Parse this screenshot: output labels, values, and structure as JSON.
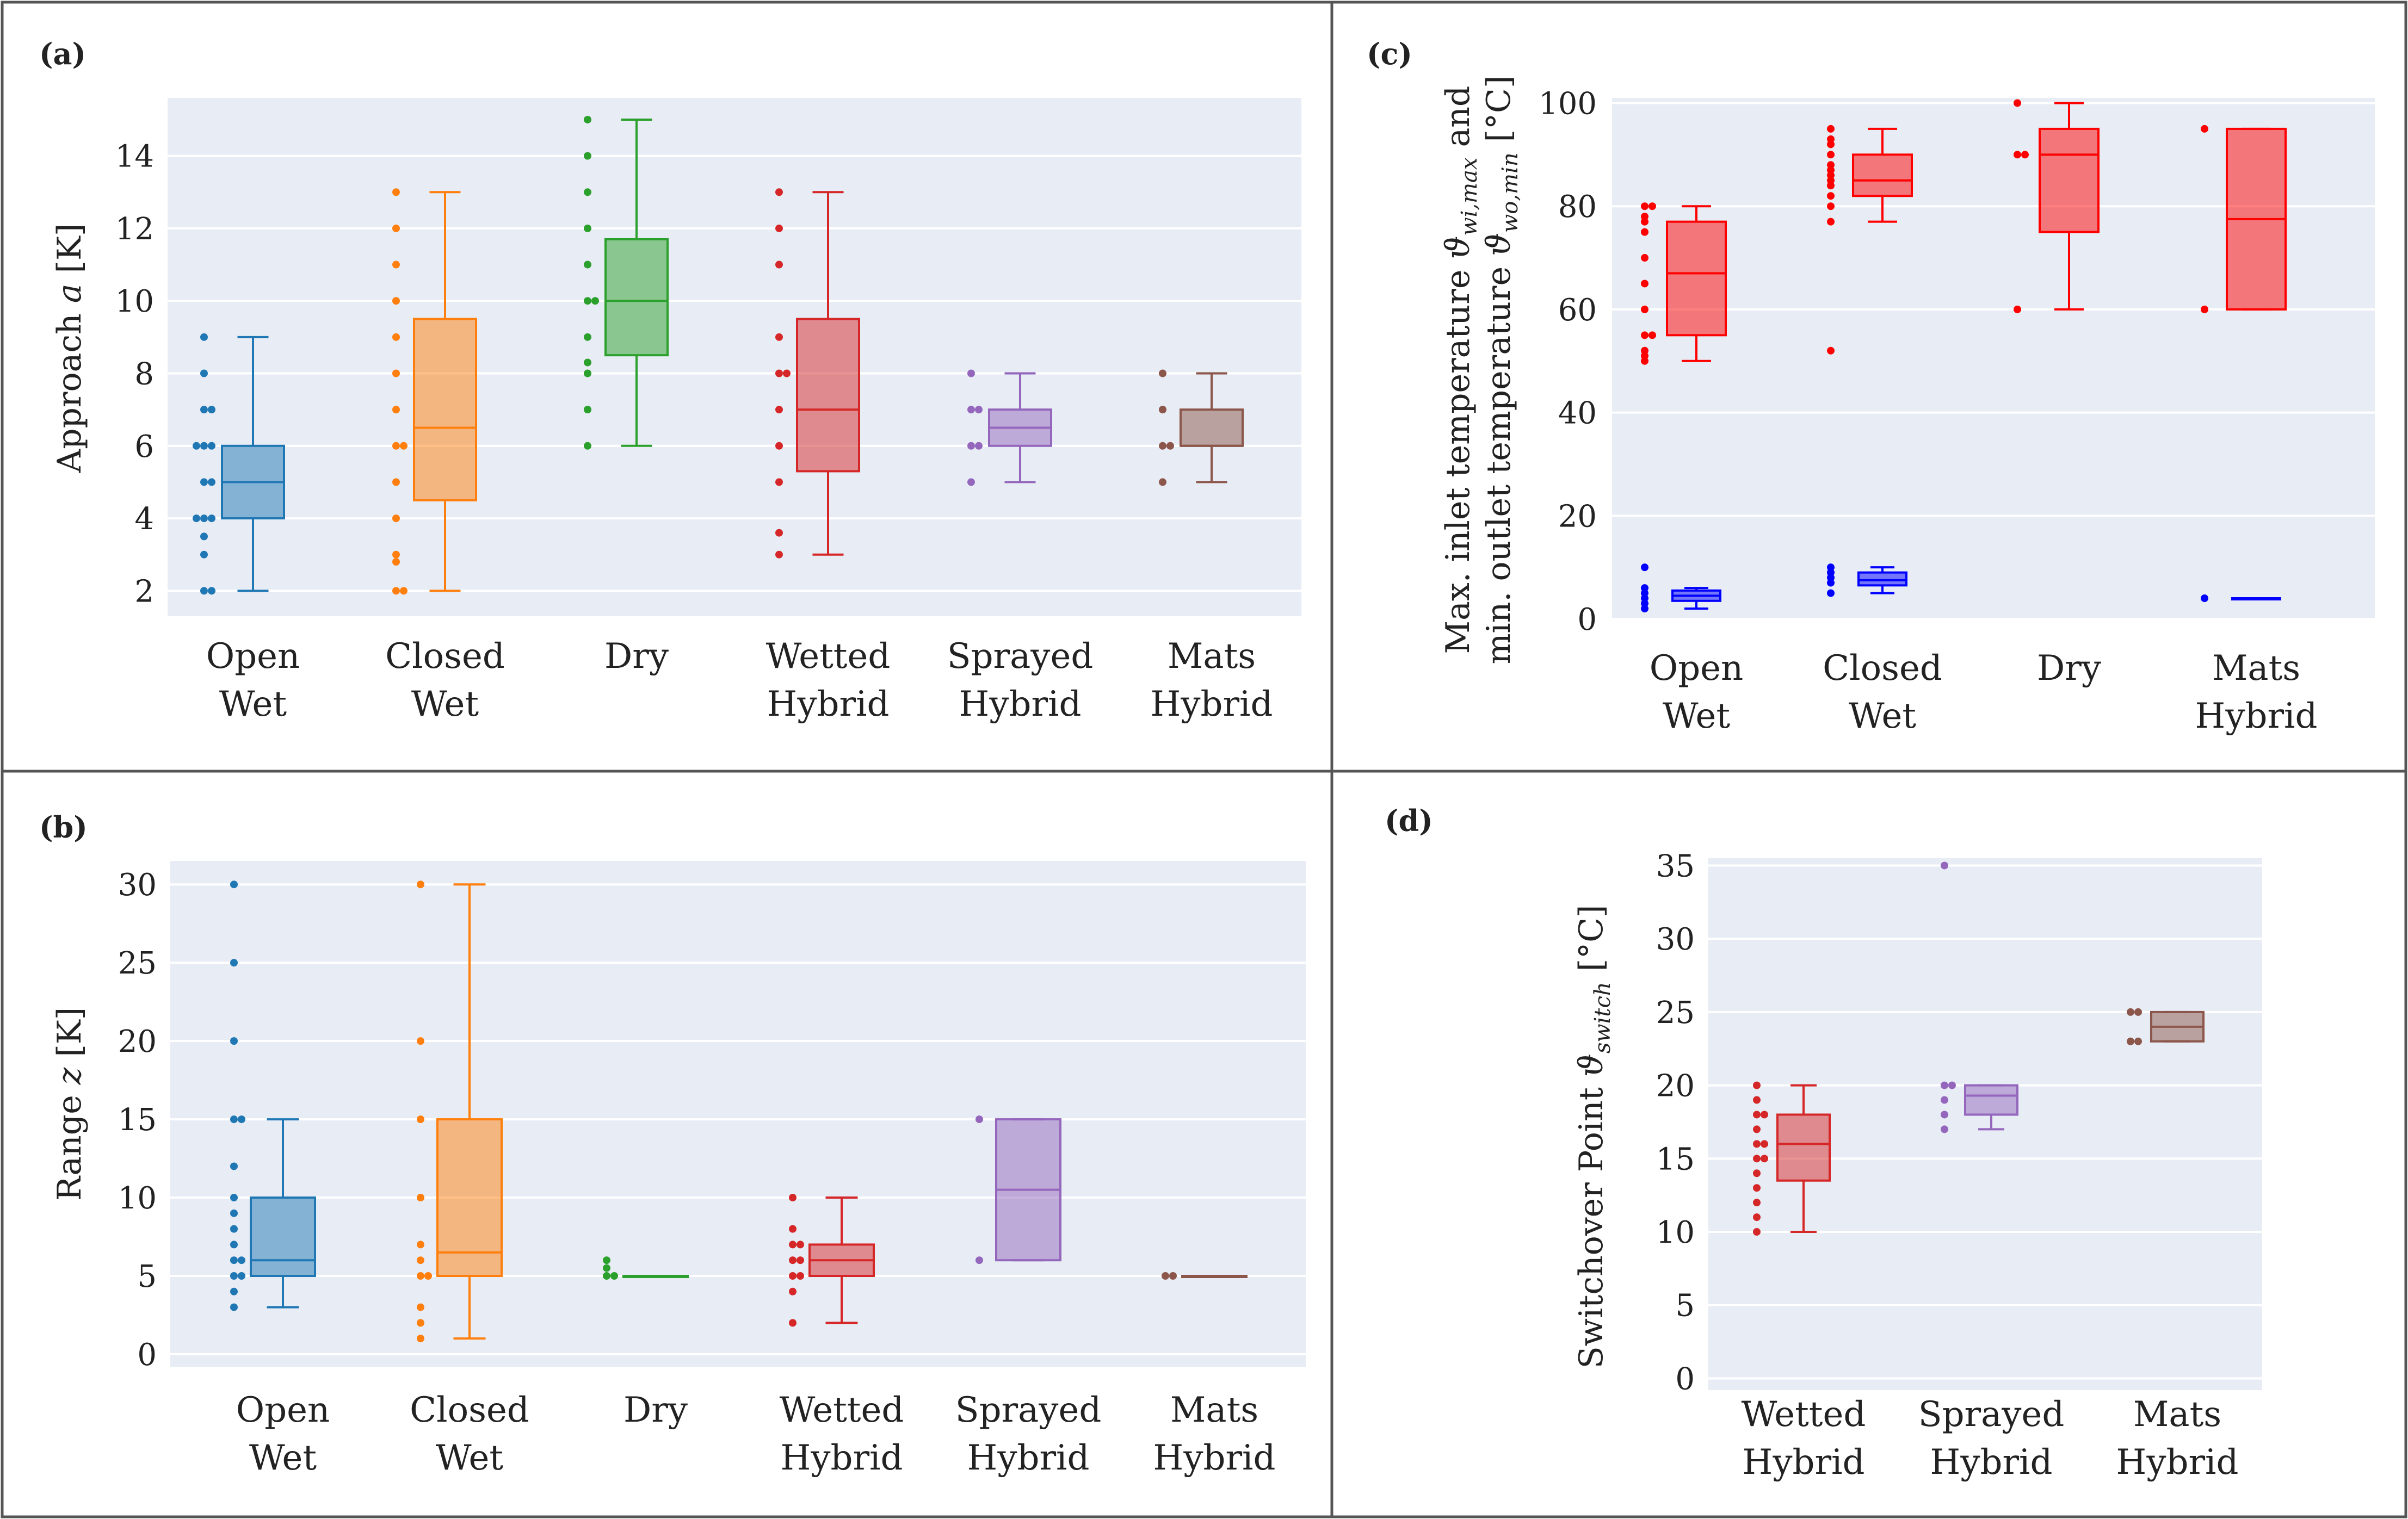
{
  "figure": {
    "colors": {
      "background": "#e7ecf5",
      "grid": "#ffffff",
      "border": "#555555",
      "blue": "#1f77b4",
      "orange": "#ff7f0e",
      "green": "#2ca02c",
      "red": "#d62728",
      "purple": "#9467bd",
      "brown": "#8c564b",
      "bright_red": "#ff0000",
      "bright_blue": "#0000ff"
    }
  },
  "chart_data": [
    {
      "id": "a",
      "panel_label": "(a)",
      "type": "box",
      "ylabel": "Approach a [K]",
      "ylim": [
        1.3,
        15.6
      ],
      "yticks": [
        2,
        4,
        6,
        8,
        10,
        12,
        14
      ],
      "categories": [
        {
          "line1": "Open",
          "line2": "Wet",
          "color": "blue",
          "box": {
            "q1": 4,
            "median": 5,
            "q3": 6,
            "whisker_low": 2,
            "whisker_high": 9
          },
          "points": [
            2,
            2,
            3,
            3.5,
            4,
            4,
            4,
            5,
            5,
            6,
            6,
            6,
            7,
            7,
            8,
            9
          ]
        },
        {
          "line1": "Closed",
          "line2": "Wet",
          "color": "orange",
          "box": {
            "q1": 4.5,
            "median": 6.5,
            "q3": 9.5,
            "whisker_low": 2,
            "whisker_high": 13
          },
          "points": [
            2,
            2,
            2.8,
            3,
            4,
            5,
            6,
            6,
            7,
            8,
            9,
            10,
            11,
            12,
            13
          ]
        },
        {
          "line1": "Dry",
          "line2": "",
          "color": "green",
          "box": {
            "q1": 8.5,
            "median": 10,
            "q3": 11.7,
            "whisker_low": 6,
            "whisker_high": 15
          },
          "points": [
            6,
            7,
            8,
            8.3,
            9,
            10,
            10,
            11,
            12,
            13,
            14,
            15
          ]
        },
        {
          "line1": "Wetted",
          "line2": "Hybrid",
          "color": "red",
          "box": {
            "q1": 5.3,
            "median": 7,
            "q3": 9.5,
            "whisker_low": 3,
            "whisker_high": 13
          },
          "points": [
            3,
            3.6,
            5,
            6,
            7,
            8,
            8,
            9,
            11,
            12,
            13
          ]
        },
        {
          "line1": "Sprayed",
          "line2": "Hybrid",
          "color": "purple",
          "box": {
            "q1": 6,
            "median": 6.5,
            "q3": 7,
            "whisker_low": 5,
            "whisker_high": 8
          },
          "points": [
            5,
            6,
            6,
            7,
            7,
            8
          ]
        },
        {
          "line1": "Mats",
          "line2": "Hybrid",
          "color": "brown",
          "box": {
            "q1": 6,
            "median": 6,
            "q3": 7,
            "whisker_low": 5,
            "whisker_high": 8
          },
          "points": [
            5,
            6,
            6,
            7,
            8
          ]
        }
      ]
    },
    {
      "id": "b",
      "panel_label": "(b)",
      "type": "box",
      "ylabel": "Range z [K]",
      "ylim": [
        -0.8,
        31.5
      ],
      "yticks": [
        0,
        5,
        10,
        15,
        20,
        25,
        30
      ],
      "categories": [
        {
          "line1": "Open",
          "line2": "Wet",
          "color": "blue",
          "box": {
            "q1": 5,
            "median": 6,
            "q3": 10,
            "whisker_low": 3,
            "whisker_high": 15
          },
          "points": [
            3,
            4,
            5,
            5,
            6,
            6,
            7,
            8,
            9,
            10,
            12,
            15,
            15,
            20,
            25,
            30
          ]
        },
        {
          "line1": "Closed",
          "line2": "Wet",
          "color": "orange",
          "box": {
            "q1": 5,
            "median": 6.5,
            "q3": 15,
            "whisker_low": 1,
            "whisker_high": 30
          },
          "points": [
            1,
            2,
            3,
            5,
            5,
            6,
            7,
            10,
            15,
            20,
            30
          ]
        },
        {
          "line1": "Dry",
          "line2": "",
          "color": "green",
          "box": {
            "q1": 5,
            "median": 5,
            "q3": 5,
            "whisker_low": 5,
            "whisker_high": 5
          },
          "points": [
            5,
            5,
            5.5,
            6
          ]
        },
        {
          "line1": "Wetted",
          "line2": "Hybrid",
          "color": "red",
          "box": {
            "q1": 5,
            "median": 6,
            "q3": 7,
            "whisker_low": 2,
            "whisker_high": 10
          },
          "points": [
            2,
            4,
            5,
            5,
            6,
            6,
            7,
            7,
            8,
            10
          ]
        },
        {
          "line1": "Sprayed",
          "line2": "Hybrid",
          "color": "purple",
          "box": {
            "q1": 6,
            "median": 10.5,
            "q3": 15,
            "whisker_low": 6,
            "whisker_high": 15
          },
          "points": [
            6,
            15
          ]
        },
        {
          "line1": "Mats",
          "line2": "Hybrid",
          "color": "brown",
          "box": {
            "q1": 5,
            "median": 5,
            "q3": 5,
            "whisker_low": 5,
            "whisker_high": 5
          },
          "points": [
            5,
            5
          ]
        }
      ]
    },
    {
      "id": "c",
      "panel_label": "(c)",
      "type": "box",
      "ylabel_line1": "Max. inlet temperature ϑwi,max and",
      "ylabel_line2": "min. outlet temperature ϑwo,min [°C]",
      "ylim": [
        0,
        101
      ],
      "yticks": [
        0,
        20,
        40,
        60,
        80,
        100
      ],
      "categories": [
        {
          "line1": "Open",
          "line2": "Wet",
          "series": [
            {
              "name": "Max. inlet temperature",
              "color": "bright_red",
              "box": {
                "q1": 55,
                "median": 67,
                "q3": 77,
                "whisker_low": 50,
                "whisker_high": 80
              },
              "points": [
                50,
                51,
                52,
                55,
                55,
                60,
                65,
                70,
                75,
                77,
                78,
                80,
                80
              ]
            },
            {
              "name": "Min. outlet temperature",
              "color": "bright_blue",
              "box": {
                "q1": 3.5,
                "median": 4.5,
                "q3": 5.5,
                "whisker_low": 2,
                "whisker_high": 6
              },
              "points": [
                2,
                3,
                4,
                5,
                6,
                10
              ]
            }
          ]
        },
        {
          "line1": "Closed",
          "line2": "Wet",
          "series": [
            {
              "name": "Max. inlet temperature",
              "color": "bright_red",
              "box": {
                "q1": 82,
                "median": 85,
                "q3": 90,
                "whisker_low": 77,
                "whisker_high": 95
              },
              "points": [
                52,
                77,
                80,
                82,
                84,
                85,
                86,
                87,
                88,
                90,
                92,
                93,
                95
              ]
            },
            {
              "name": "Min. outlet temperature",
              "color": "bright_blue",
              "box": {
                "q1": 6.5,
                "median": 7.5,
                "q3": 9,
                "whisker_low": 5,
                "whisker_high": 10
              },
              "points": [
                5,
                7,
                8,
                9,
                10
              ]
            }
          ]
        },
        {
          "line1": "Dry",
          "line2": "",
          "series": [
            {
              "name": "Max. inlet temperature",
              "color": "bright_red",
              "box": {
                "q1": 75,
                "median": 90,
                "q3": 95,
                "whisker_low": 60,
                "whisker_high": 100
              },
              "points": [
                60,
                90,
                90,
                100
              ]
            }
          ]
        },
        {
          "line1": "Mats",
          "line2": "Hybrid",
          "series": [
            {
              "name": "Max. inlet temperature",
              "color": "bright_red",
              "box": {
                "q1": 60,
                "median": 77.5,
                "q3": 95,
                "whisker_low": 60,
                "whisker_high": 95
              },
              "points": [
                60,
                95
              ]
            },
            {
              "name": "Min. outlet temperature",
              "color": "bright_blue",
              "box": {
                "q1": 4,
                "median": 4,
                "q3": 4,
                "whisker_low": 4,
                "whisker_high": 4
              },
              "points": [
                4
              ]
            }
          ]
        }
      ]
    },
    {
      "id": "d",
      "panel_label": "(d)",
      "type": "box",
      "ylabel": "Switchover Point ϑswitch [°C]",
      "ylim": [
        -0.8,
        35.5
      ],
      "yticks": [
        0,
        5,
        10,
        15,
        20,
        25,
        30,
        35
      ],
      "categories": [
        {
          "line1": "Wetted",
          "line2": "Hybrid",
          "color": "red",
          "box": {
            "q1": 13.5,
            "median": 16,
            "q3": 18,
            "whisker_low": 10,
            "whisker_high": 20
          },
          "points": [
            10,
            11,
            12,
            13,
            14,
            15,
            15,
            16,
            16,
            17,
            18,
            18,
            19,
            20
          ]
        },
        {
          "line1": "Sprayed",
          "line2": "Hybrid",
          "color": "purple",
          "box": {
            "q1": 18,
            "median": 19.3,
            "q3": 20,
            "whisker_low": 17,
            "whisker_high": 20
          },
          "points": [
            17,
            18,
            19,
            20,
            20,
            35
          ]
        },
        {
          "line1": "Mats",
          "line2": "Hybrid",
          "color": "brown",
          "box": {
            "q1": 23,
            "median": 24,
            "q3": 25,
            "whisker_low": 23,
            "whisker_high": 25
          },
          "points": [
            23,
            23,
            25,
            25
          ]
        }
      ]
    }
  ]
}
